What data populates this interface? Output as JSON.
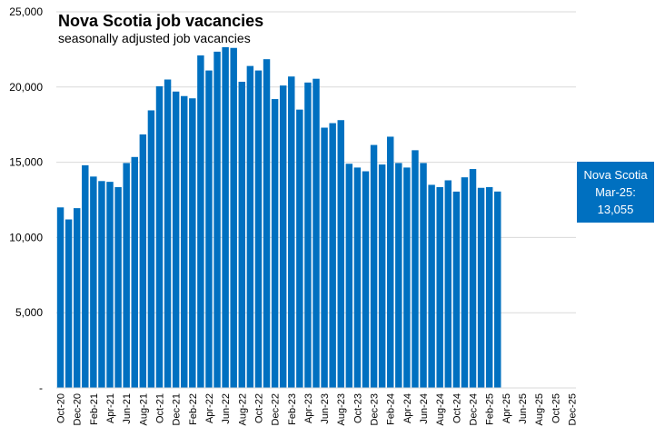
{
  "chart_data": {
    "type": "bar",
    "title": "Nova Scotia job vacancies",
    "subtitle": "seasonally adjusted job vacancies",
    "xlabel": "",
    "ylabel": "",
    "ylim": [
      0,
      25000
    ],
    "y_ticks": [
      0,
      5000,
      10000,
      15000,
      20000,
      25000
    ],
    "y_tick_labels": [
      "-",
      "5,000",
      "10,000",
      "15,000",
      "20,000",
      "25,000"
    ],
    "grid": true,
    "bar_color": "#0070C0",
    "categories": [
      "Oct-20",
      "Nov-20",
      "Dec-20",
      "Jan-21",
      "Feb-21",
      "Mar-21",
      "Apr-21",
      "May-21",
      "Jun-21",
      "Jul-21",
      "Aug-21",
      "Sep-21",
      "Oct-21",
      "Nov-21",
      "Dec-21",
      "Jan-22",
      "Feb-22",
      "Mar-22",
      "Apr-22",
      "May-22",
      "Jun-22",
      "Jul-22",
      "Aug-22",
      "Sep-22",
      "Oct-22",
      "Nov-22",
      "Dec-22",
      "Jan-23",
      "Feb-23",
      "Mar-23",
      "Apr-23",
      "May-23",
      "Jun-23",
      "Jul-23",
      "Aug-23",
      "Sep-23",
      "Oct-23",
      "Nov-23",
      "Dec-23",
      "Jan-24",
      "Feb-24",
      "Mar-24",
      "Apr-24",
      "May-24",
      "Jun-24",
      "Jul-24",
      "Aug-24",
      "Sep-24",
      "Oct-24",
      "Nov-24",
      "Dec-24",
      "Jan-25",
      "Feb-25",
      "Mar-25",
      "Apr-25",
      "May-25",
      "Jun-25",
      "Jul-25",
      "Aug-25",
      "Sep-25",
      "Oct-25",
      "Nov-25",
      "Dec-25"
    ],
    "tick_labels": [
      "Oct-20",
      "Dec-20",
      "Feb-21",
      "Apr-21",
      "Jun-21",
      "Aug-21",
      "Oct-21",
      "Dec-21",
      "Feb-22",
      "Apr-22",
      "Jun-22",
      "Aug-22",
      "Oct-22",
      "Dec-22",
      "Feb-23",
      "Apr-23",
      "Jun-23",
      "Aug-23",
      "Oct-23",
      "Dec-23",
      "Feb-24",
      "Apr-24",
      "Jun-24",
      "Aug-24",
      "Oct-24",
      "Dec-24",
      "Feb-25",
      "Apr-25",
      "Jun-25",
      "Aug-25",
      "Oct-25",
      "Dec-25"
    ],
    "series": [
      {
        "values": [
          12000,
          11200,
          11950,
          14800,
          14050,
          13750,
          13700,
          13350,
          14950,
          15350,
          16850,
          18450,
          20050,
          20500,
          19700,
          19400,
          19250,
          22100,
          21100,
          22350,
          22650,
          22600,
          20350,
          21400,
          21100,
          21850,
          19200,
          20100,
          20700,
          18500,
          20300,
          20550,
          17300,
          17600,
          17800,
          14900,
          14650,
          14400,
          16150,
          14850,
          16700,
          14950,
          14650,
          15800,
          14950,
          13500,
          13350,
          13800,
          13050,
          14000,
          14550,
          13300,
          13350,
          13055,
          null,
          null,
          null,
          null,
          null,
          null,
          null,
          null,
          null
        ]
      }
    ],
    "annotation": {
      "lines": [
        "Nova Scotia",
        "Mar-25:",
        "13,055"
      ],
      "background": "#0070C0",
      "text_color": "#ffffff"
    }
  }
}
